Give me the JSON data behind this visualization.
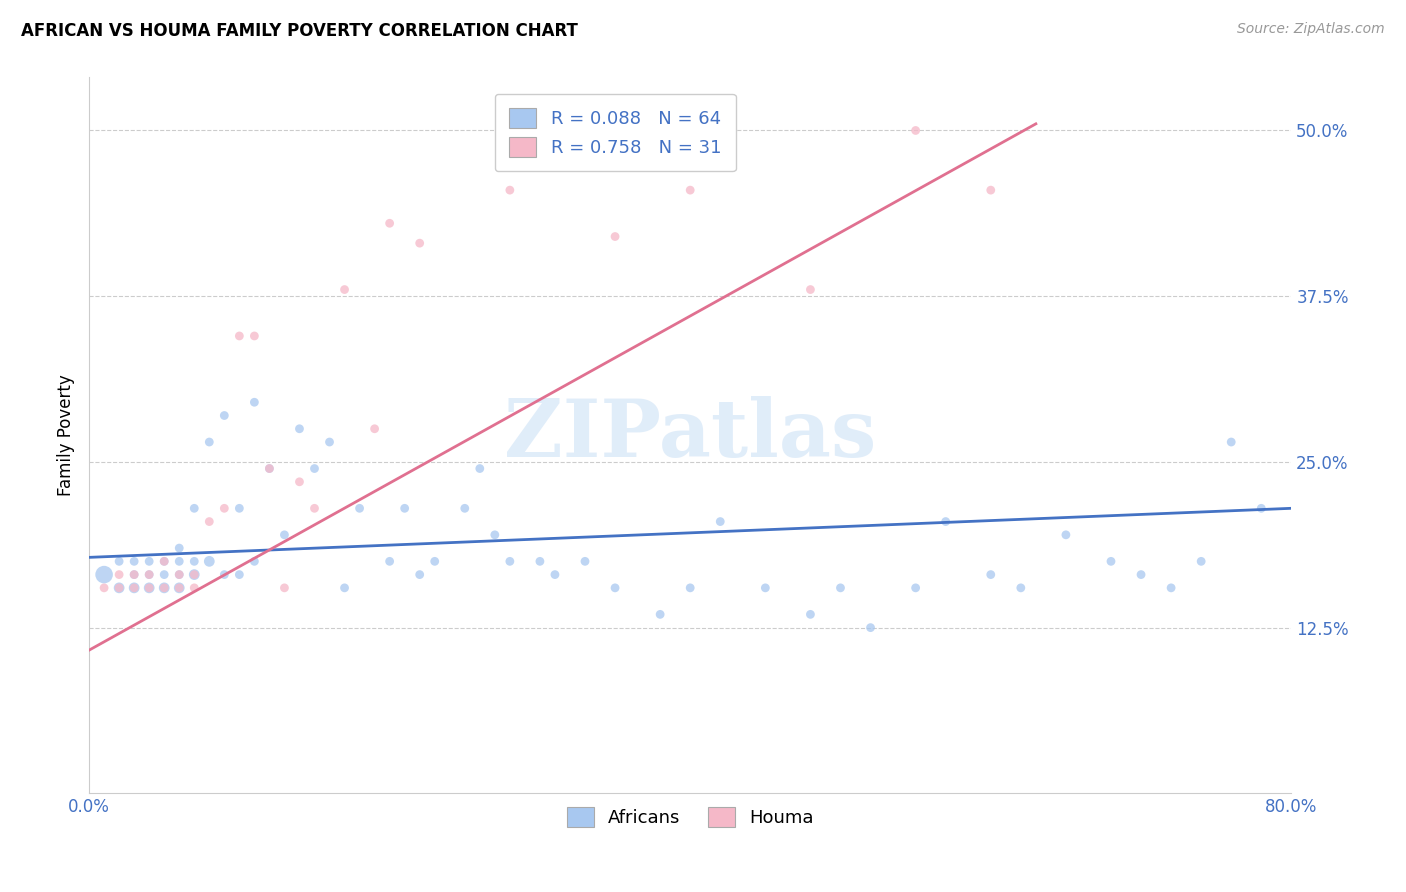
{
  "title": "AFRICAN VS HOUMA FAMILY POVERTY CORRELATION CHART",
  "source": "Source: ZipAtlas.com",
  "ylabel": "Family Poverty",
  "ytick_labels": [
    "12.5%",
    "25.0%",
    "37.5%",
    "50.0%"
  ],
  "ytick_values": [
    0.125,
    0.25,
    0.375,
    0.5
  ],
  "xtick_labels": [
    "0.0%",
    "80.0%"
  ],
  "xtick_positions": [
    0.0,
    0.8
  ],
  "xlim": [
    0.0,
    0.8
  ],
  "ylim": [
    0.0,
    0.54
  ],
  "african_color": "#a8c8f0",
  "houma_color": "#f5b8c8",
  "african_line_color": "#4472c4",
  "houma_line_color": "#e07090",
  "watermark": "ZIPatlas",
  "africans_x": [
    0.01,
    0.02,
    0.02,
    0.03,
    0.03,
    0.03,
    0.04,
    0.04,
    0.04,
    0.05,
    0.05,
    0.05,
    0.06,
    0.06,
    0.06,
    0.06,
    0.07,
    0.07,
    0.07,
    0.08,
    0.08,
    0.09,
    0.09,
    0.1,
    0.1,
    0.11,
    0.11,
    0.12,
    0.13,
    0.14,
    0.15,
    0.16,
    0.17,
    0.18,
    0.2,
    0.21,
    0.22,
    0.23,
    0.25,
    0.26,
    0.27,
    0.28,
    0.3,
    0.31,
    0.33,
    0.35,
    0.38,
    0.4,
    0.42,
    0.45,
    0.48,
    0.5,
    0.52,
    0.55,
    0.57,
    0.6,
    0.62,
    0.65,
    0.68,
    0.7,
    0.72,
    0.74,
    0.76,
    0.78
  ],
  "africans_y": [
    0.165,
    0.155,
    0.175,
    0.155,
    0.165,
    0.175,
    0.155,
    0.165,
    0.175,
    0.155,
    0.165,
    0.175,
    0.155,
    0.165,
    0.175,
    0.185,
    0.165,
    0.175,
    0.215,
    0.175,
    0.265,
    0.165,
    0.285,
    0.165,
    0.215,
    0.175,
    0.295,
    0.245,
    0.195,
    0.275,
    0.245,
    0.265,
    0.155,
    0.215,
    0.175,
    0.215,
    0.165,
    0.175,
    0.215,
    0.245,
    0.195,
    0.175,
    0.175,
    0.165,
    0.175,
    0.155,
    0.135,
    0.155,
    0.205,
    0.155,
    0.135,
    0.155,
    0.125,
    0.155,
    0.205,
    0.165,
    0.155,
    0.195,
    0.175,
    0.165,
    0.155,
    0.175,
    0.265,
    0.215
  ],
  "africans_size": [
    160,
    60,
    40,
    60,
    40,
    40,
    60,
    40,
    40,
    60,
    40,
    40,
    60,
    40,
    40,
    40,
    60,
    40,
    40,
    60,
    40,
    40,
    40,
    40,
    40,
    40,
    40,
    40,
    40,
    40,
    40,
    40,
    40,
    40,
    40,
    40,
    40,
    40,
    40,
    40,
    40,
    40,
    40,
    40,
    40,
    40,
    40,
    40,
    40,
    40,
    40,
    40,
    40,
    40,
    40,
    40,
    40,
    40,
    40,
    40,
    40,
    40,
    40,
    40
  ],
  "houma_x": [
    0.01,
    0.02,
    0.02,
    0.03,
    0.03,
    0.04,
    0.04,
    0.05,
    0.05,
    0.06,
    0.06,
    0.07,
    0.07,
    0.08,
    0.09,
    0.1,
    0.11,
    0.12,
    0.13,
    0.14,
    0.15,
    0.17,
    0.19,
    0.2,
    0.22,
    0.28,
    0.35,
    0.4,
    0.48,
    0.55,
    0.6
  ],
  "houma_y": [
    0.155,
    0.155,
    0.165,
    0.155,
    0.165,
    0.155,
    0.165,
    0.155,
    0.175,
    0.155,
    0.165,
    0.155,
    0.165,
    0.205,
    0.215,
    0.345,
    0.345,
    0.245,
    0.155,
    0.235,
    0.215,
    0.38,
    0.275,
    0.43,
    0.415,
    0.455,
    0.42,
    0.455,
    0.38,
    0.5,
    0.455
  ],
  "houma_size": [
    40,
    40,
    40,
    40,
    40,
    40,
    40,
    40,
    40,
    40,
    40,
    40,
    40,
    40,
    40,
    40,
    40,
    40,
    40,
    40,
    40,
    40,
    40,
    40,
    40,
    40,
    40,
    40,
    40,
    40,
    40
  ],
  "african_line_start_x": 0.0,
  "african_line_start_y": 0.178,
  "african_line_end_x": 0.8,
  "african_line_end_y": 0.215,
  "houma_line_start_x": 0.0,
  "houma_line_start_y": 0.108,
  "houma_line_end_x": 0.63,
  "houma_line_end_y": 0.505
}
